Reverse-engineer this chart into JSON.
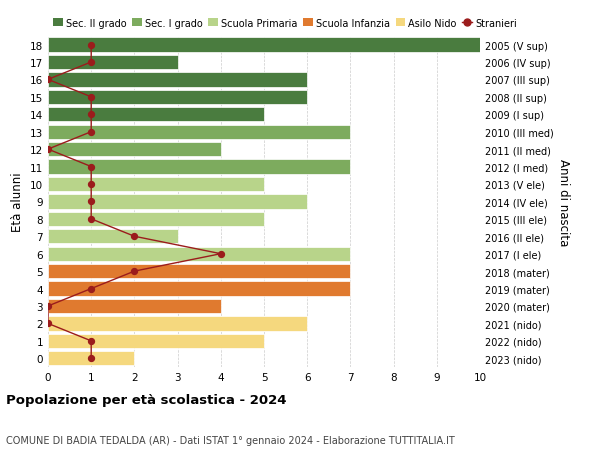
{
  "ages": [
    18,
    17,
    16,
    15,
    14,
    13,
    12,
    11,
    10,
    9,
    8,
    7,
    6,
    5,
    4,
    3,
    2,
    1,
    0
  ],
  "years": [
    "2005 (V sup)",
    "2006 (IV sup)",
    "2007 (III sup)",
    "2008 (II sup)",
    "2009 (I sup)",
    "2010 (III med)",
    "2011 (II med)",
    "2012 (I med)",
    "2013 (V ele)",
    "2014 (IV ele)",
    "2015 (III ele)",
    "2016 (II ele)",
    "2017 (I ele)",
    "2018 (mater)",
    "2019 (mater)",
    "2020 (mater)",
    "2021 (nido)",
    "2022 (nido)",
    "2023 (nido)"
  ],
  "bar_values": [
    10,
    3,
    6,
    6,
    5,
    7,
    4,
    7,
    5,
    6,
    5,
    3,
    7,
    7,
    7,
    4,
    6,
    5,
    2
  ],
  "bar_colors": [
    "#4a7c3f",
    "#4a7c3f",
    "#4a7c3f",
    "#4a7c3f",
    "#4a7c3f",
    "#7dab5e",
    "#7dab5e",
    "#7dab5e",
    "#b8d48a",
    "#b8d48a",
    "#b8d48a",
    "#b8d48a",
    "#b8d48a",
    "#e07a2f",
    "#e07a2f",
    "#e07a2f",
    "#f5d87e",
    "#f5d87e",
    "#f5d87e"
  ],
  "stranieri_values": [
    1,
    1,
    0,
    1,
    1,
    1,
    0,
    1,
    1,
    1,
    1,
    2,
    4,
    2,
    1,
    0,
    0,
    1,
    1
  ],
  "stranieri_color": "#9b1c1c",
  "legend_labels": [
    "Sec. II grado",
    "Sec. I grado",
    "Scuola Primaria",
    "Scuola Infanzia",
    "Asilo Nido",
    "Stranieri"
  ],
  "legend_colors": [
    "#4a7c3f",
    "#7dab5e",
    "#b8d48a",
    "#e07a2f",
    "#f5d87e",
    "#9b1c1c"
  ],
  "ylabel": "Età alunni",
  "ylabel2": "Anni di nascita",
  "title": "Popolazione per età scolastica - 2024",
  "subtitle": "COMUNE DI BADIA TEDALDA (AR) - Dati ISTAT 1° gennaio 2024 - Elaborazione TUTTITALIA.IT",
  "xlim": [
    0,
    10
  ],
  "ylim_min": -0.5,
  "ylim_max": 18.5,
  "background_color": "#ffffff",
  "grid_color": "#cccccc"
}
